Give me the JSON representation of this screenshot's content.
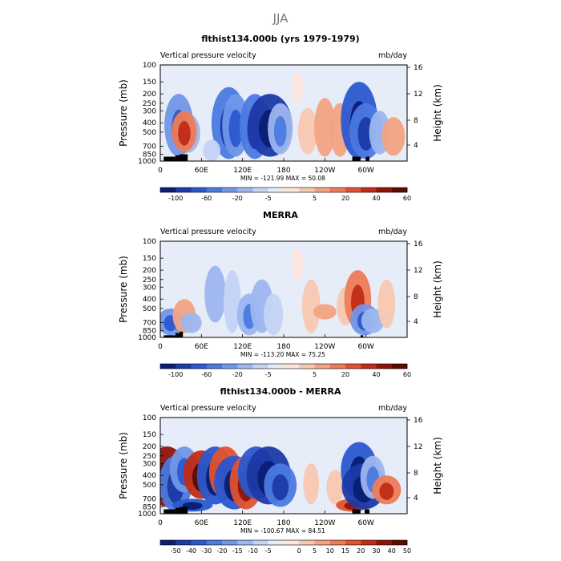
{
  "figure": {
    "season_title": "JJA"
  },
  "colors": {
    "axis": "#000000",
    "land_mask": "#000000"
  },
  "chart_data": [
    {
      "type": "heatmap",
      "title": "flthist134.000b (yrs 1979-1979)",
      "left_string": "Vertical pressure velocity",
      "right_string": "mb/day",
      "ylabel": "Pressure (mb)",
      "ylabel_right": "Height (km)",
      "y_ticks": [
        "100",
        "150",
        "200",
        "250",
        "300",
        "400",
        "500",
        "700",
        "850",
        "1000"
      ],
      "y_ticks_right": [
        "16",
        "12",
        "8",
        "4"
      ],
      "x_ticks": [
        "0",
        "60E",
        "120E",
        "180",
        "120W",
        "60W"
      ],
      "stats": "MIN = -121.99   MAX =  50.08",
      "colorbar_labels": [
        "-100",
        "-60",
        "-20",
        "-5",
        "5",
        "20",
        "40",
        "60"
      ],
      "colorbar_colors": [
        "#0a1e73",
        "#1c3aa8",
        "#2b58cf",
        "#4b7ae0",
        "#7197e8",
        "#9db6ef",
        "#c4d4f4",
        "#e6ecf8",
        "#fbe6dc",
        "#f7c8b1",
        "#f3a383",
        "#ee7c57",
        "#e2522f",
        "#c02c16",
        "#8f1508",
        "#5c0a03"
      ],
      "features": [
        {
          "lon": 40,
          "p_top": 320,
          "p_bot": 820,
          "v": -40
        },
        {
          "lon": 27,
          "p_top": 200,
          "p_bot": 900,
          "v": -50
        },
        {
          "lon": 35,
          "p_top": 300,
          "p_bot": 800,
          "v": 40
        },
        {
          "lon": 100,
          "p_top": 170,
          "p_bot": 950,
          "v": -65
        },
        {
          "lon": 110,
          "p_top": 200,
          "p_bot": 900,
          "v": -45
        },
        {
          "lon": 138,
          "p_top": 200,
          "p_bot": 950,
          "v": -55
        },
        {
          "lon": 160,
          "p_top": 200,
          "p_bot": 900,
          "v": -90
        },
        {
          "lon": 175,
          "p_top": 250,
          "p_bot": 850,
          "v": -40
        },
        {
          "lon": 215,
          "p_top": 280,
          "p_bot": 850,
          "v": 25
        },
        {
          "lon": 240,
          "p_top": 220,
          "p_bot": 900,
          "v": 30
        },
        {
          "lon": 262,
          "p_top": 250,
          "p_bot": 900,
          "v": 28
        },
        {
          "lon": 290,
          "p_top": 150,
          "p_bot": 950,
          "v": -70
        },
        {
          "lon": 300,
          "p_top": 250,
          "p_bot": 950,
          "v": -60
        },
        {
          "lon": 320,
          "p_top": 300,
          "p_bot": 850,
          "v": -30
        },
        {
          "lon": 340,
          "p_top": 350,
          "p_bot": 880,
          "v": 35
        },
        {
          "lon": 75,
          "p_top": 600,
          "p_bot": 1000,
          "v": -20
        },
        {
          "lon": 200,
          "p_top": 120,
          "p_bot": 250,
          "v": 5
        },
        {
          "lon": 60,
          "p_top": 100,
          "p_bot": 200,
          "v": -8
        }
      ],
      "land": [
        {
          "lon0": 5,
          "lon1": 22,
          "p": 900
        },
        {
          "lon0": 22,
          "lon1": 28,
          "p": 870
        },
        {
          "lon0": 28,
          "lon1": 40,
          "p": 850
        },
        {
          "lon0": 280,
          "lon1": 292,
          "p": 900
        },
        {
          "lon0": 300,
          "lon1": 305,
          "p": 900
        }
      ]
    },
    {
      "type": "heatmap",
      "title": "MERRA",
      "left_string": "Vertical pressure velocity",
      "right_string": "mb/day",
      "ylabel": "Pressure (mb)",
      "ylabel_right": "Height (km)",
      "y_ticks": [
        "100",
        "150",
        "200",
        "250",
        "300",
        "400",
        "500",
        "700",
        "850",
        "1000"
      ],
      "y_ticks_right": [
        "16",
        "12",
        "8",
        "4"
      ],
      "x_ticks": [
        "0",
        "60E",
        "120E",
        "180",
        "120W",
        "60W"
      ],
      "stats": "MIN = -113.20   MAX =  75.25",
      "colorbar_labels": [
        "-100",
        "-60",
        "-20",
        "-5",
        "5",
        "20",
        "40",
        "60"
      ],
      "colorbar_colors": [
        "#0a1e73",
        "#1c3aa8",
        "#2b58cf",
        "#4b7ae0",
        "#7197e8",
        "#9db6ef",
        "#c4d4f4",
        "#e6ecf8",
        "#fbe6dc",
        "#f7c8b1",
        "#f3a383",
        "#ee7c57",
        "#e2522f",
        "#c02c16",
        "#8f1508",
        "#5c0a03"
      ],
      "features": [
        {
          "lon": 15,
          "p_top": 500,
          "p_bot": 950,
          "v": -45
        },
        {
          "lon": 35,
          "p_top": 400,
          "p_bot": 900,
          "v": 35
        },
        {
          "lon": 45,
          "p_top": 550,
          "p_bot": 900,
          "v": -30
        },
        {
          "lon": 25,
          "p_top": 150,
          "p_bot": 400,
          "v": -12
        },
        {
          "lon": 80,
          "p_top": 180,
          "p_bot": 700,
          "v": -30
        },
        {
          "lon": 105,
          "p_top": 200,
          "p_bot": 900,
          "v": -20
        },
        {
          "lon": 130,
          "p_top": 350,
          "p_bot": 950,
          "v": -40
        },
        {
          "lon": 148,
          "p_top": 250,
          "p_bot": 900,
          "v": -35
        },
        {
          "lon": 165,
          "p_top": 350,
          "p_bot": 950,
          "v": -25
        },
        {
          "lon": 220,
          "p_top": 250,
          "p_bot": 900,
          "v": 22
        },
        {
          "lon": 240,
          "p_top": 450,
          "p_bot": 650,
          "v": 35
        },
        {
          "lon": 270,
          "p_top": 300,
          "p_bot": 750,
          "v": 20
        },
        {
          "lon": 288,
          "p_top": 200,
          "p_bot": 800,
          "v": 45
        },
        {
          "lon": 298,
          "p_top": 450,
          "p_bot": 950,
          "v": -50
        },
        {
          "lon": 310,
          "p_top": 500,
          "p_bot": 900,
          "v": -35
        },
        {
          "lon": 330,
          "p_top": 250,
          "p_bot": 800,
          "v": 20
        },
        {
          "lon": 200,
          "p_top": 120,
          "p_bot": 250,
          "v": 5
        }
      ],
      "land": [
        {
          "lon0": 5,
          "lon1": 22,
          "p": 950
        },
        {
          "lon0": 22,
          "lon1": 28,
          "p": 900
        },
        {
          "lon0": 28,
          "lon1": 33,
          "p": 870
        },
        {
          "lon0": 292,
          "lon1": 296,
          "p": 950
        }
      ]
    },
    {
      "type": "heatmap",
      "title": "flthist134.000b - MERRA",
      "left_string": "Vertical pressure velocity",
      "right_string": "mb/day",
      "ylabel": "Pressure (mb)",
      "ylabel_right": "Height (km)",
      "y_ticks": [
        "100",
        "150",
        "200",
        "250",
        "300",
        "400",
        "500",
        "700",
        "850",
        "1000"
      ],
      "y_ticks_right": [
        "16",
        "12",
        "8",
        "4"
      ],
      "x_ticks": [
        "0",
        "60E",
        "120E",
        "180",
        "120W",
        "60W"
      ],
      "stats": "MIN = -100.67   MAX =  84.51",
      "colorbar_labels": [
        "-50",
        "-40",
        "-30",
        "-20",
        "-15",
        "-10",
        "-5",
        "0",
        "5",
        "10",
        "15",
        "20",
        "30",
        "40",
        "50"
      ],
      "colorbar_colors": [
        "#0a1e73",
        "#1c3aa8",
        "#2b58cf",
        "#4b7ae0",
        "#7197e8",
        "#9db6ef",
        "#c4d4f4",
        "#e6ecf8",
        "#fbe6dc",
        "#f7c8b1",
        "#f3a383",
        "#ee7c57",
        "#e2522f",
        "#c02c16",
        "#8f1508",
        "#5c0a03"
      ],
      "features": [
        {
          "lon": 10,
          "p_top": 200,
          "p_bot": 850,
          "v": 40
        },
        {
          "lon": 22,
          "p_top": 250,
          "p_bot": 950,
          "v": -30
        },
        {
          "lon": 35,
          "p_top": 200,
          "p_bot": 600,
          "v": -25
        },
        {
          "lon": 47,
          "p_top": 700,
          "p_bot": 950,
          "v": -40
        },
        {
          "lon": 60,
          "p_top": 220,
          "p_bot": 700,
          "v": 35
        },
        {
          "lon": 80,
          "p_top": 200,
          "p_bot": 800,
          "v": -35
        },
        {
          "lon": 95,
          "p_top": 200,
          "p_bot": 700,
          "v": 30
        },
        {
          "lon": 108,
          "p_top": 250,
          "p_bot": 900,
          "v": -40
        },
        {
          "lon": 125,
          "p_top": 250,
          "p_bot": 900,
          "v": 30
        },
        {
          "lon": 140,
          "p_top": 200,
          "p_bot": 700,
          "v": -35
        },
        {
          "lon": 158,
          "p_top": 200,
          "p_bot": 800,
          "v": -45
        },
        {
          "lon": 175,
          "p_top": 300,
          "p_bot": 850,
          "v": -30
        },
        {
          "lon": 220,
          "p_top": 300,
          "p_bot": 800,
          "v": 8
        },
        {
          "lon": 255,
          "p_top": 350,
          "p_bot": 800,
          "v": 10
        },
        {
          "lon": 280,
          "p_top": 700,
          "p_bot": 950,
          "v": 30
        },
        {
          "lon": 290,
          "p_top": 180,
          "p_bot": 700,
          "v": -35
        },
        {
          "lon": 297,
          "p_top": 300,
          "p_bot": 900,
          "v": -45
        },
        {
          "lon": 310,
          "p_top": 250,
          "p_bot": 700,
          "v": -20
        },
        {
          "lon": 330,
          "p_top": 400,
          "p_bot": 800,
          "v": 25
        }
      ],
      "land": [
        {
          "lon0": 5,
          "lon1": 22,
          "p": 900
        },
        {
          "lon0": 22,
          "lon1": 28,
          "p": 870
        },
        {
          "lon0": 28,
          "lon1": 40,
          "p": 850
        },
        {
          "lon0": 280,
          "lon1": 292,
          "p": 900
        },
        {
          "lon0": 298,
          "lon1": 305,
          "p": 900
        }
      ]
    }
  ]
}
